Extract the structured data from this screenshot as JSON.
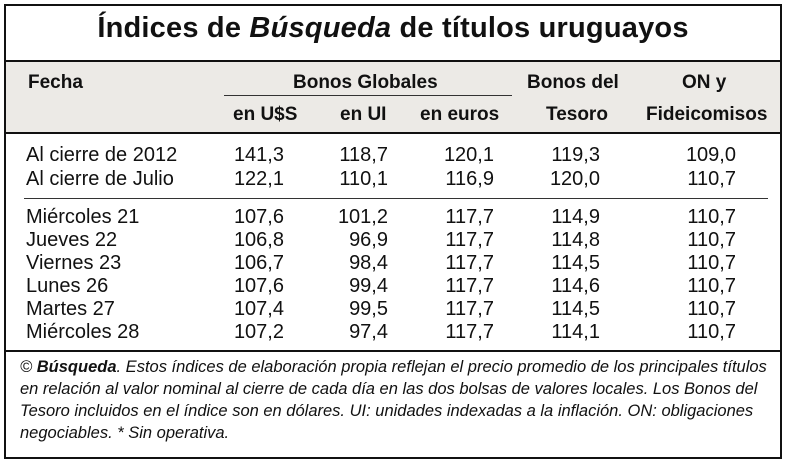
{
  "title": {
    "prefix": "Índices de ",
    "brand": "Búsqueda",
    "suffix": " de títulos uruguayos"
  },
  "headers": {
    "fecha": "Fecha",
    "group_bonos_globales": "Bonos Globales",
    "col_usd": "en U$S",
    "col_ui": "en UI",
    "col_euros": "en euros",
    "col_tesoro_1": "Bonos del",
    "col_tesoro_2": "Tesoro",
    "col_on_1": "ON y",
    "col_on_2": "Fideicomisos"
  },
  "rows_top": [
    {
      "fecha": "Al cierre de 2012",
      "usd": "141,3",
      "ui": "118,7",
      "euros": "120,1",
      "tesoro": "119,3",
      "on": "109,0"
    },
    {
      "fecha": "Al cierre de Julio",
      "usd": "122,1",
      "ui": "110,1",
      "euros": "116,9",
      "tesoro": "120,0",
      "on": "110,7"
    }
  ],
  "rows_bottom": [
    {
      "fecha": "Miércoles 21",
      "usd": "107,6",
      "ui": "101,2",
      "euros": "117,7",
      "tesoro": "114,9",
      "on": "110,7"
    },
    {
      "fecha": "Jueves 22",
      "usd": "106,8",
      "ui": "96,9",
      "euros": "117,7",
      "tesoro": "114,8",
      "on": "110,7"
    },
    {
      "fecha": "Viernes 23",
      "usd": "106,7",
      "ui": "98,4",
      "euros": "117,7",
      "tesoro": "114,5",
      "on": "110,7"
    },
    {
      "fecha": "Lunes 26",
      "usd": "107,6",
      "ui": "99,4",
      "euros": "117,7",
      "tesoro": "114,6",
      "on": "110,7"
    },
    {
      "fecha": "Martes 27",
      "usd": "107,4",
      "ui": "99,5",
      "euros": "117,7",
      "tesoro": "114,5",
      "on": "110,7"
    },
    {
      "fecha": "Miércoles 28",
      "usd": "107,2",
      "ui": "97,4",
      "euros": "117,7",
      "tesoro": "114,1",
      "on": "110,7"
    }
  ],
  "footnote": {
    "copyright": "© ",
    "brand": "Búsqueda",
    "text": ". Estos índices de elaboración propia reflejan el precio promedio de los principales títulos en relación al valor nominal al cierre de cada día en las dos bolsas de valores locales. Los Bonos del Tesoro incluidos en el índice son en dólares. UI: unidades indexadas a la inflación. ON: obligaciones negociables. * Sin operativa."
  }
}
